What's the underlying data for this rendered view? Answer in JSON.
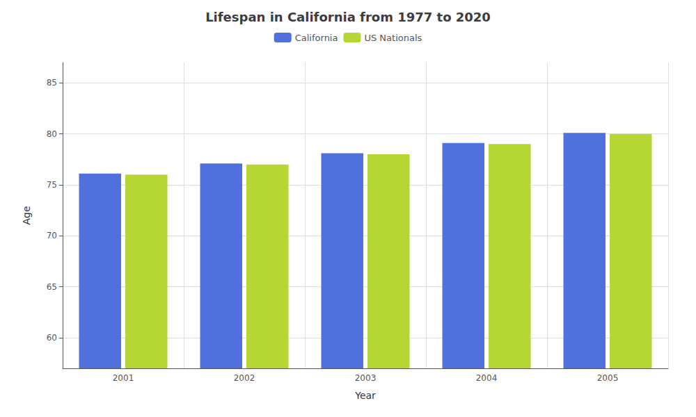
{
  "chart_data": {
    "type": "bar",
    "title": "Lifespan in California from 1977 to 2020",
    "xlabel": "Year",
    "ylabel": "Age",
    "categories": [
      "2001",
      "2002",
      "2003",
      "2004",
      "2005"
    ],
    "series": [
      {
        "name": "California",
        "values": [
          76.1,
          77.1,
          78.1,
          79.1,
          80.1
        ]
      },
      {
        "name": "US Nationals",
        "values": [
          76.0,
          77.0,
          78.0,
          79.0,
          80.0
        ]
      }
    ],
    "ylim": [
      57,
      87
    ],
    "yticks": [
      60,
      65,
      70,
      75,
      80,
      85
    ],
    "grid": true,
    "legend": "top"
  }
}
